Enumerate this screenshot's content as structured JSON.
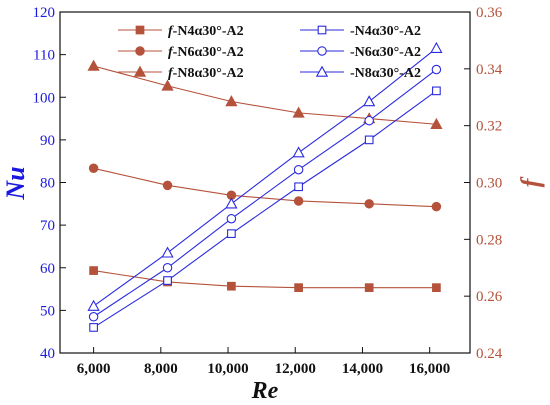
{
  "chart_data": {
    "type": "line",
    "xlabel": "Re",
    "ylabel_left": "Nu",
    "ylabel_right": "f",
    "x": [
      6000,
      8200,
      10100,
      12100,
      14200,
      16200
    ],
    "x_ticks": [
      6000,
      8000,
      10000,
      12000,
      14000,
      16000
    ],
    "x_tick_labels": [
      "6,000",
      "8,000",
      "10,000",
      "12,000",
      "14,000",
      "16,000"
    ],
    "xlim": [
      5000,
      17200
    ],
    "ylim_left": [
      40,
      120
    ],
    "y_left_ticks": [
      40,
      50,
      60,
      70,
      80,
      90,
      100,
      110,
      120
    ],
    "ylim_right": [
      0.24,
      0.36
    ],
    "y_right_ticks": [
      0.24,
      0.26,
      0.28,
      0.3,
      0.32,
      0.34,
      0.36
    ],
    "y_right_tick_labels": [
      "0.24",
      "0.26",
      "0.28",
      "0.30",
      "0.32",
      "0.34",
      "0.36"
    ],
    "legend_placement": "top",
    "colors": {
      "left_axis": "#1a1adf",
      "right_axis": "#b5523b",
      "f_series": "#b5523b",
      "nu_series": "#2a2adf"
    },
    "series": [
      {
        "legend_prefix": "f",
        "legend_suffix": "-N4α30°-A2",
        "axis": "right",
        "marker": "square-filled",
        "values": [
          0.269,
          0.265,
          0.2635,
          0.263,
          0.263,
          0.263
        ]
      },
      {
        "legend_prefix": "f",
        "legend_suffix": "-N6α30°-A2",
        "axis": "right",
        "marker": "circle-filled",
        "values": [
          0.305,
          0.299,
          0.2955,
          0.2935,
          0.2925,
          0.2915
        ]
      },
      {
        "legend_prefix": "f",
        "legend_suffix": "-N8α30°-A2",
        "axis": "right",
        "marker": "triangle-filled",
        "values": [
          0.341,
          0.334,
          0.3285,
          0.3245,
          0.3225,
          0.3205
        ]
      },
      {
        "legend_prefix": "",
        "legend_suffix": "-N4α30°-A2",
        "axis": "left",
        "marker": "square-open",
        "values": [
          46,
          57,
          68,
          79,
          90,
          101.5
        ]
      },
      {
        "legend_prefix": "",
        "legend_suffix": "-N6α30°-A2",
        "axis": "left",
        "marker": "circle-open",
        "values": [
          48.5,
          60,
          71.5,
          83,
          94.5,
          106.5
        ]
      },
      {
        "legend_prefix": "",
        "legend_suffix": "-N8α30°-A2",
        "axis": "left",
        "marker": "triangle-open",
        "values": [
          51,
          63.5,
          75,
          87,
          99,
          111.5
        ]
      }
    ]
  }
}
